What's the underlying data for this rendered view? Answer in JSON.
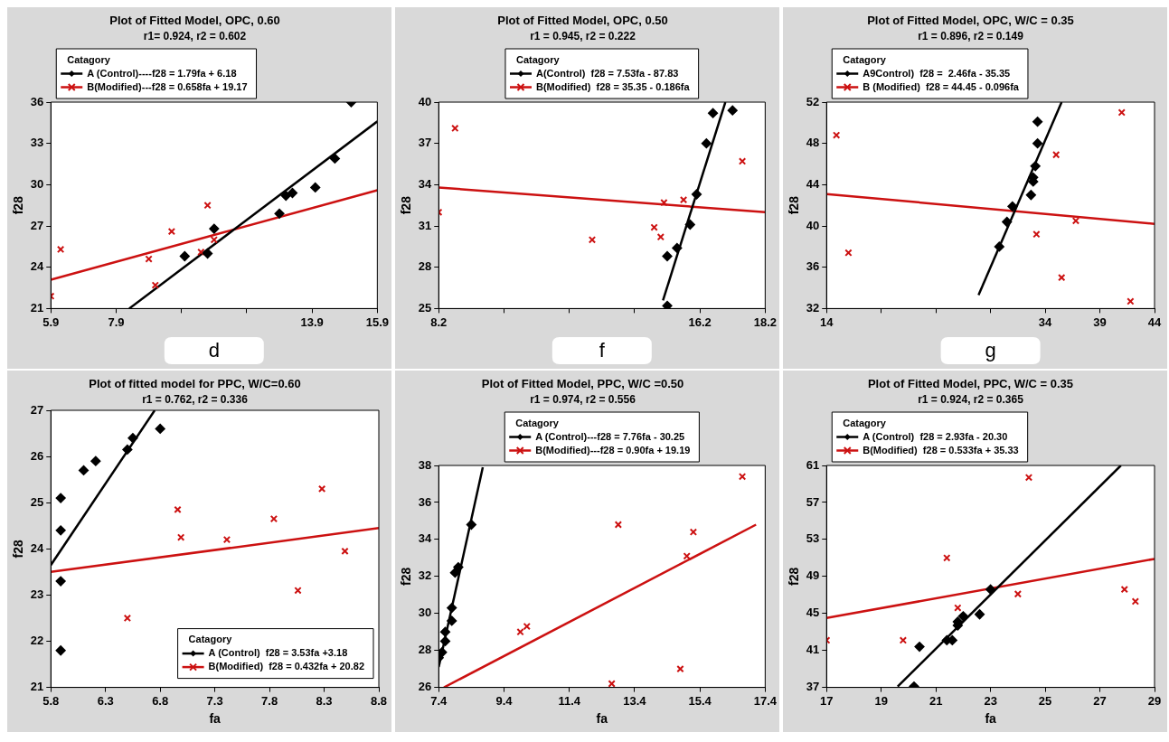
{
  "chart_data": [
    {
      "type": "scatter",
      "title": "Plot of Fitted Model, OPC, 0.60",
      "subtitle": "r1= 0.924, r2 = 0.602",
      "ylabel": "f28",
      "legend": "top left",
      "legend_title": "Catagory",
      "annotations": [
        "d"
      ],
      "xlim": [
        5.9,
        15.9
      ],
      "xticks": [
        5.9,
        7.9,
        {
          "value": 9.9,
          "label": null
        },
        {
          "value": 11.9,
          "label": null
        },
        13.9,
        15.9
      ],
      "ylim": [
        21,
        36
      ],
      "yticks": [
        21,
        24,
        27,
        30,
        33,
        36
      ],
      "series": [
        {
          "name": "A (Control)----f28 = 1.79fa + 6.18",
          "color": "#000000",
          "marker": "diamond",
          "x": [
            10.0,
            10.7,
            10.9,
            12.9,
            13.1,
            13.3,
            14.0,
            14.6,
            15.1
          ],
          "values": [
            24.8,
            25.0,
            26.8,
            27.9,
            29.2,
            29.4,
            29.8,
            31.9,
            36.0
          ]
        },
        {
          "name": "B(Modified)---f28 = 0.658fa + 19.17",
          "color": "#cc1111",
          "marker": "cross",
          "x": [
            5.9,
            6.2,
            8.9,
            9.6,
            9.1,
            10.5,
            10.7,
            10.9
          ],
          "values": [
            21.9,
            25.3,
            24.6,
            26.6,
            22.7,
            25.1,
            28.5,
            26.0
          ]
        },
        {
          "type": "line",
          "color": "#000000",
          "x": [
            8.3,
            15.9
          ],
          "values": [
            21.0,
            34.6
          ]
        },
        {
          "type": "line",
          "color": "#cc1111",
          "x": [
            5.9,
            15.9
          ],
          "values": [
            23.1,
            29.6
          ]
        }
      ]
    },
    {
      "type": "scatter",
      "title": "Plot of Fitted Model, OPC, 0.50",
      "subtitle": "r1 = 0.945, r2 = 0.222",
      "ylabel": "f28",
      "legend": "top",
      "legend_title": "Catagory",
      "annotations": [
        "f"
      ],
      "xlim": [
        8.2,
        18.2
      ],
      "xticks": [
        8.2,
        {
          "value": 10.2,
          "label": null
        },
        {
          "value": 12.2,
          "label": null
        },
        {
          "value": 14.2,
          "label": null
        },
        16.2,
        18.2
      ],
      "ylim": [
        25,
        40
      ],
      "yticks": [
        25,
        28,
        31,
        34,
        37,
        40
      ],
      "series": [
        {
          "name": "A(Control)  f28 = 7.53fa - 87.83",
          "color": "#000000",
          "marker": "diamond",
          "x": [
            15.2,
            15.2,
            15.5,
            15.9,
            16.1,
            16.4,
            16.6,
            17.2
          ],
          "values": [
            25.2,
            28.8,
            29.4,
            31.1,
            33.3,
            37.0,
            39.2,
            39.4
          ]
        },
        {
          "name": "B(Modified)  f28 = 35.35 - 0.186fa",
          "color": "#cc1111",
          "marker": "cross",
          "x": [
            8.2,
            8.7,
            12.9,
            14.8,
            15.0,
            15.1,
            15.7,
            17.5
          ],
          "values": [
            32.0,
            38.1,
            30.0,
            30.9,
            30.2,
            32.7,
            32.9,
            35.7
          ]
        },
        {
          "type": "line",
          "color": "#000000",
          "x": [
            15.07,
            16.98
          ],
          "values": [
            25.6,
            40.0
          ]
        },
        {
          "type": "line",
          "color": "#cc1111",
          "x": [
            8.2,
            18.2
          ],
          "values": [
            33.8,
            32.0
          ]
        }
      ]
    },
    {
      "type": "scatter",
      "title": "Plot of Fitted Model, OPC, W/C = 0.35",
      "subtitle": "r1 = 0.896, r2 = 0.149",
      "ylabel": "f28",
      "legend": "top left",
      "legend_title": "Catagory",
      "annotations": [
        "g"
      ],
      "xlim": [
        14,
        44
      ],
      "xticks": [
        14,
        {
          "value": 19,
          "label": null
        },
        {
          "value": 24,
          "label": null
        },
        {
          "value": 29,
          "label": null
        },
        34,
        39,
        44
      ],
      "ylim": [
        32,
        52
      ],
      "yticks": [
        32,
        36,
        40,
        44,
        48,
        52
      ],
      "series": [
        {
          "name": "A9Control)  f28 =  2.46fa - 35.35",
          "color": "#000000",
          "marker": "diamond",
          "x": [
            29.8,
            30.5,
            31.0,
            32.7,
            32.9,
            32.9,
            33.1,
            33.3,
            33.3
          ],
          "values": [
            38.0,
            40.4,
            41.9,
            43.0,
            44.3,
            44.7,
            45.8,
            48.0,
            50.1
          ]
        },
        {
          "name": "B (Modified)  f28 = 44.45 - 0.096fa",
          "color": "#cc1111",
          "marker": "cross",
          "x": [
            14.9,
            16.0,
            33.2,
            35.0,
            35.5,
            36.8,
            41.0,
            41.8
          ],
          "values": [
            48.8,
            37.4,
            39.2,
            46.9,
            35.0,
            40.5,
            51.0,
            32.7
          ]
        },
        {
          "type": "line",
          "color": "#000000",
          "x": [
            27.9,
            35.5
          ],
          "values": [
            33.3,
            52.0
          ]
        },
        {
          "type": "line",
          "color": "#cc1111",
          "x": [
            14,
            44
          ],
          "values": [
            43.1,
            40.2
          ]
        }
      ]
    },
    {
      "type": "scatter",
      "title": "Plot of fitted model for PPC, W/C=0.60",
      "subtitle": "r1 = 0.762, r2 = 0.336",
      "xlabel": "fa",
      "ylabel": "f28",
      "legend": "bottom right",
      "legend_title": "Catagory",
      "xlim": [
        5.8,
        8.8
      ],
      "xticks": [
        5.8,
        6.3,
        6.8,
        7.3,
        7.8,
        8.3,
        8.8
      ],
      "ylim": [
        21,
        27
      ],
      "yticks": [
        21,
        22,
        23,
        24,
        25,
        26,
        27
      ],
      "series": [
        {
          "name": "A (Control)  f28 = 3.53fa +3.18",
          "color": "#000000",
          "marker": "diamond",
          "x": [
            5.89,
            5.89,
            5.89,
            5.89,
            6.1,
            6.21,
            6.5,
            6.55,
            6.8
          ],
          "values": [
            21.8,
            23.3,
            24.4,
            25.1,
            25.7,
            25.9,
            26.15,
            26.4,
            26.6
          ]
        },
        {
          "name": "B(Modified)  f28 = 0.432fa + 20.82",
          "color": "#cc1111",
          "marker": "cross",
          "x": [
            6.5,
            6.96,
            6.99,
            7.41,
            7.84,
            8.06,
            8.28,
            8.49
          ],
          "values": [
            22.5,
            24.85,
            24.25,
            24.2,
            24.65,
            23.1,
            25.3,
            23.95
          ]
        },
        {
          "type": "line",
          "color": "#000000",
          "x": [
            5.8,
            6.75
          ],
          "values": [
            23.65,
            27.0
          ]
        },
        {
          "type": "line",
          "color": "#cc1111",
          "x": [
            5.8,
            8.8
          ],
          "values": [
            23.5,
            24.45
          ]
        }
      ]
    },
    {
      "type": "scatter",
      "title": "Plot of Fitted Model, PPC, W/C =0.50",
      "subtitle": "r1 = 0.974, r2 = 0.556",
      "xlabel": "fa",
      "ylabel": "f28",
      "legend": "top",
      "legend_title": "Catagory",
      "xlim": [
        7.4,
        17.4
      ],
      "xticks": [
        7.4,
        9.4,
        11.4,
        13.4,
        15.4,
        17.4
      ],
      "ylim": [
        26,
        38
      ],
      "yticks": [
        26,
        28,
        30,
        32,
        34,
        36,
        38
      ],
      "series": [
        {
          "name": "A (Control)---f28 = 7.76fa - 30.25",
          "color": "#000000",
          "marker": "diamond",
          "x": [
            7.4,
            7.5,
            7.6,
            7.6,
            7.8,
            7.8,
            7.9,
            8.0,
            8.4
          ],
          "values": [
            27.6,
            27.9,
            28.5,
            29.0,
            29.6,
            30.3,
            32.2,
            32.5,
            34.8
          ]
        },
        {
          "name": "B(Modified)---f28 = 0.90fa + 19.19",
          "color": "#cc1111",
          "marker": "cross",
          "x": [
            9.9,
            10.1,
            12.7,
            12.9,
            14.8,
            15.0,
            15.2,
            16.7
          ],
          "values": [
            29.0,
            29.3,
            26.2,
            34.8,
            27.0,
            33.1,
            34.4,
            37.4
          ]
        },
        {
          "type": "line",
          "color": "#000000",
          "x": [
            7.4,
            8.75
          ],
          "values": [
            27.1,
            37.9
          ]
        },
        {
          "type": "line",
          "color": "#cc1111",
          "x": [
            7.56,
            17.12
          ],
          "values": [
            26.0,
            34.8
          ]
        }
      ]
    },
    {
      "type": "scatter",
      "title": "Plot of Fitted Model, PPC, W/C = 0.35",
      "subtitle": "r1 = 0.924, r2 = 0.365",
      "xlabel": "fa",
      "ylabel": "f28",
      "legend": "top left",
      "legend_title": "Catagory",
      "xlim": [
        17,
        29
      ],
      "xticks": [
        17,
        19,
        21,
        23,
        25,
        27,
        29
      ],
      "ylim": [
        37,
        61
      ],
      "yticks": [
        37,
        41,
        45,
        49,
        53,
        57,
        61
      ],
      "series": [
        {
          "name": "A (Control)  f28 = 2.93fa - 20.30",
          "color": "#000000",
          "marker": "diamond",
          "x": [
            20.2,
            20.4,
            21.4,
            21.6,
            21.8,
            21.8,
            22.0,
            22.6,
            23.0
          ],
          "values": [
            37.1,
            41.4,
            42.1,
            42.1,
            43.7,
            44.1,
            44.7,
            44.9,
            47.6
          ]
        },
        {
          "name": "B(Modified)  f28 = 0.533fa + 35.33",
          "color": "#cc1111",
          "marker": "cross",
          "x": [
            17.0,
            19.8,
            21.4,
            21.8,
            24.0,
            24.4,
            27.9,
            28.3
          ],
          "values": [
            42.1,
            42.1,
            51.0,
            45.6,
            47.1,
            59.7,
            47.6,
            46.3
          ]
        },
        {
          "type": "line",
          "color": "#000000",
          "x": [
            19.6,
            27.77
          ],
          "values": [
            37.1,
            61.0
          ]
        },
        {
          "type": "line",
          "color": "#cc1111",
          "x": [
            17,
            29
          ],
          "values": [
            44.5,
            50.9
          ]
        }
      ]
    }
  ]
}
